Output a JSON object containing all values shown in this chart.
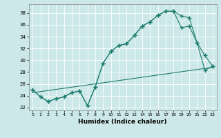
{
  "xlabel": "Humidex (Indice chaleur)",
  "bg_color": "#cce8e8",
  "grid_color": "#ffffff",
  "line_color": "#1a7a6e",
  "xlim": [
    -0.5,
    23.5
  ],
  "ylim": [
    21.5,
    39.5
  ],
  "yticks": [
    22,
    24,
    26,
    28,
    30,
    32,
    34,
    36,
    38
  ],
  "xticks": [
    0,
    1,
    2,
    3,
    4,
    5,
    6,
    7,
    8,
    9,
    10,
    11,
    12,
    13,
    14,
    15,
    16,
    17,
    18,
    19,
    20,
    21,
    22,
    23
  ],
  "line1_x": [
    0,
    1,
    2,
    3,
    4,
    5,
    6,
    7,
    8,
    9,
    10,
    11,
    12,
    13,
    14,
    15,
    16,
    17,
    18,
    19,
    20,
    21,
    22,
    23
  ],
  "line1_y": [
    25.0,
    23.8,
    23.0,
    23.5,
    23.8,
    24.5,
    24.8,
    22.3,
    25.5,
    29.5,
    31.5,
    32.5,
    32.8,
    34.2,
    35.8,
    36.5,
    37.6,
    38.3,
    38.3,
    37.5,
    37.2,
    33.0,
    30.8,
    29.0
  ],
  "line2_x": [
    0,
    1,
    2,
    3,
    4,
    5,
    6,
    7,
    8,
    9,
    10,
    11,
    12,
    13,
    14,
    15,
    16,
    17,
    18,
    19,
    20,
    21,
    22,
    23
  ],
  "line2_y": [
    25.0,
    23.8,
    23.0,
    23.5,
    23.8,
    24.5,
    24.8,
    22.3,
    25.5,
    29.5,
    31.5,
    32.5,
    32.8,
    34.2,
    35.8,
    36.5,
    37.6,
    38.3,
    38.3,
    35.5,
    35.8,
    33.0,
    28.3,
    29.0
  ],
  "line3_x": [
    0,
    23
  ],
  "line3_y": [
    24.5,
    28.8
  ]
}
